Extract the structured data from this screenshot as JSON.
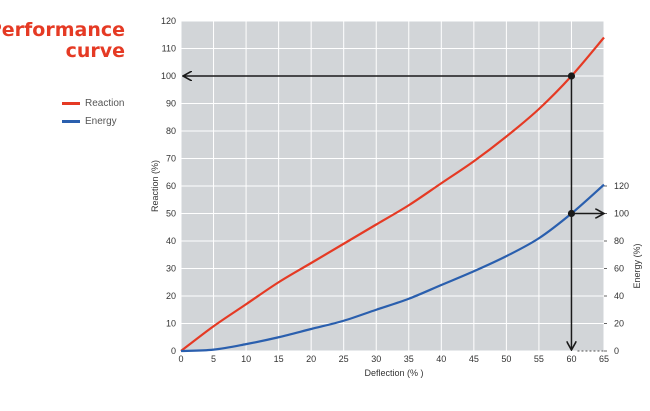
{
  "title_line1": "Performance",
  "title_line2": "curve",
  "colors": {
    "reaction": "#e53a24",
    "energy": "#2a5fae",
    "plot_bg": "#d2d5d8",
    "grid": "#ffffff",
    "annotation": "#1a1a1a"
  },
  "chart_data": {
    "type": "line",
    "xlabel": "Deflection (% )",
    "ylabel_left": "Reaction (%)",
    "ylabel_right": "Energy (%)",
    "xlim": [
      0,
      65
    ],
    "ylim_left": [
      0,
      120
    ],
    "ylim_right": [
      0,
      120
    ],
    "x_ticks": [
      0,
      5,
      10,
      15,
      20,
      25,
      30,
      35,
      40,
      45,
      50,
      55,
      60,
      65
    ],
    "y_left_ticks": [
      0,
      10,
      20,
      30,
      40,
      50,
      60,
      70,
      80,
      90,
      100,
      110,
      120
    ],
    "y_right_ticks": [
      0,
      20,
      40,
      60,
      80,
      100,
      120
    ],
    "grid": true,
    "legend_position": "left",
    "series": [
      {
        "name": "Reaction",
        "axis": "left",
        "color": "#e53a24",
        "x": [
          0,
          5,
          10,
          15,
          20,
          25,
          30,
          35,
          40,
          45,
          50,
          55,
          60,
          65
        ],
        "y": [
          0,
          9,
          17,
          25,
          32,
          39,
          46,
          53,
          61,
          69,
          78,
          88,
          100,
          114
        ]
      },
      {
        "name": "Energy",
        "axis": "right",
        "color": "#2a5fae",
        "x": [
          0,
          5,
          10,
          15,
          20,
          25,
          30,
          35,
          40,
          45,
          50,
          55,
          60,
          65
        ],
        "y": [
          0,
          1,
          5,
          10,
          16,
          22,
          30,
          38,
          48,
          58,
          69,
          82,
          100,
          121
        ]
      }
    ],
    "annotations": [
      {
        "type": "point",
        "x": 60,
        "y": 100,
        "axis": "left"
      },
      {
        "type": "point",
        "x": 60,
        "y": 100,
        "axis": "right"
      },
      {
        "type": "arrow",
        "description": "from rated point to Reaction 100 at left axis"
      },
      {
        "type": "arrow",
        "description": "from Energy point to Energy 100 at right axis"
      },
      {
        "type": "arrow",
        "description": "down to deflection 60 on x axis"
      }
    ]
  }
}
